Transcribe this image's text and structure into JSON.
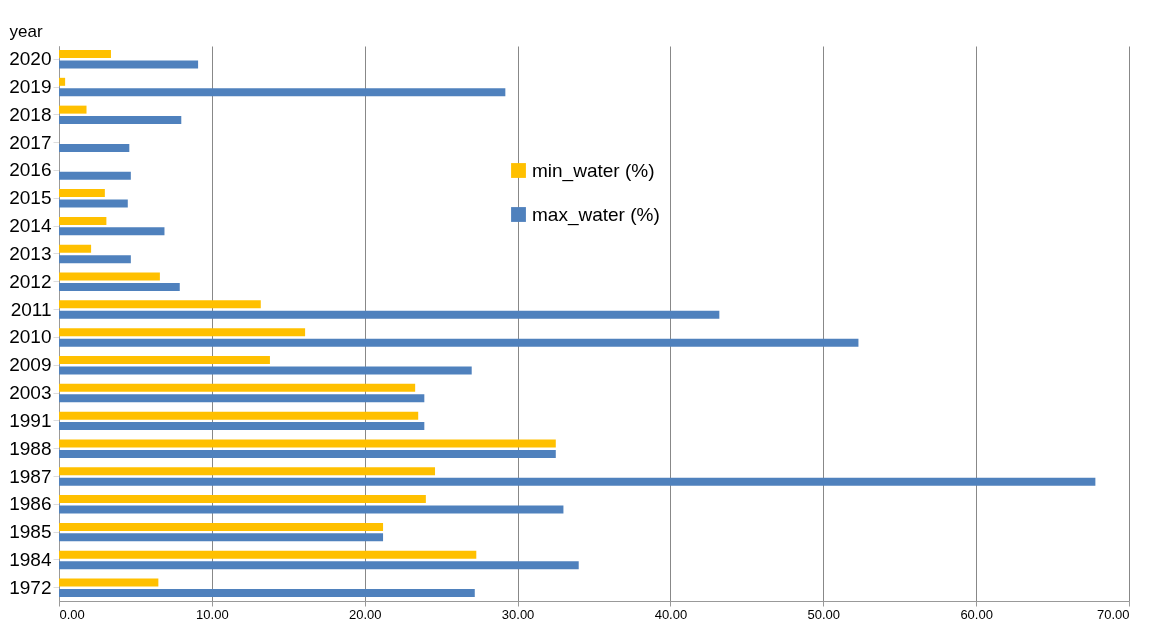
{
  "chart_data": {
    "type": "bar",
    "orientation": "horizontal",
    "ylabel": "year",
    "categories": [
      "2020",
      "2019",
      "2018",
      "2017",
      "2016",
      "2015",
      "2014",
      "2013",
      "2012",
      "2011",
      "2010",
      "2009",
      "2003",
      "1991",
      "1988",
      "1987",
      "1986",
      "1985",
      "1984",
      "1972"
    ],
    "series": [
      {
        "name": "min_water (%)",
        "color": "#ffc000",
        "values": [
          3.4,
          0.4,
          1.8,
          null,
          null,
          3.0,
          3.1,
          2.1,
          6.6,
          13.2,
          16.1,
          13.8,
          23.3,
          23.5,
          32.5,
          24.6,
          24.0,
          21.2,
          27.3,
          6.5
        ]
      },
      {
        "name": "max_water (%)",
        "color": "#4f81bd",
        "values": [
          9.1,
          29.2,
          8.0,
          4.6,
          4.7,
          4.5,
          6.9,
          4.7,
          7.9,
          43.2,
          52.3,
          27.0,
          23.9,
          23.9,
          32.5,
          67.8,
          33.0,
          21.2,
          34.0,
          27.2
        ]
      }
    ],
    "xlim": [
      0,
      70
    ],
    "xticks": [
      {
        "value": 0,
        "label": "0.00"
      },
      {
        "value": 10,
        "label": "10.00"
      },
      {
        "value": 20,
        "label": "20.00"
      },
      {
        "value": 30,
        "label": "30.00"
      },
      {
        "value": 40,
        "label": "40.00"
      },
      {
        "value": 50,
        "label": "50.00"
      },
      {
        "value": 60,
        "label": "60.00"
      },
      {
        "value": 70,
        "label": "70.00"
      }
    ],
    "grid": "x",
    "legend": "top"
  }
}
